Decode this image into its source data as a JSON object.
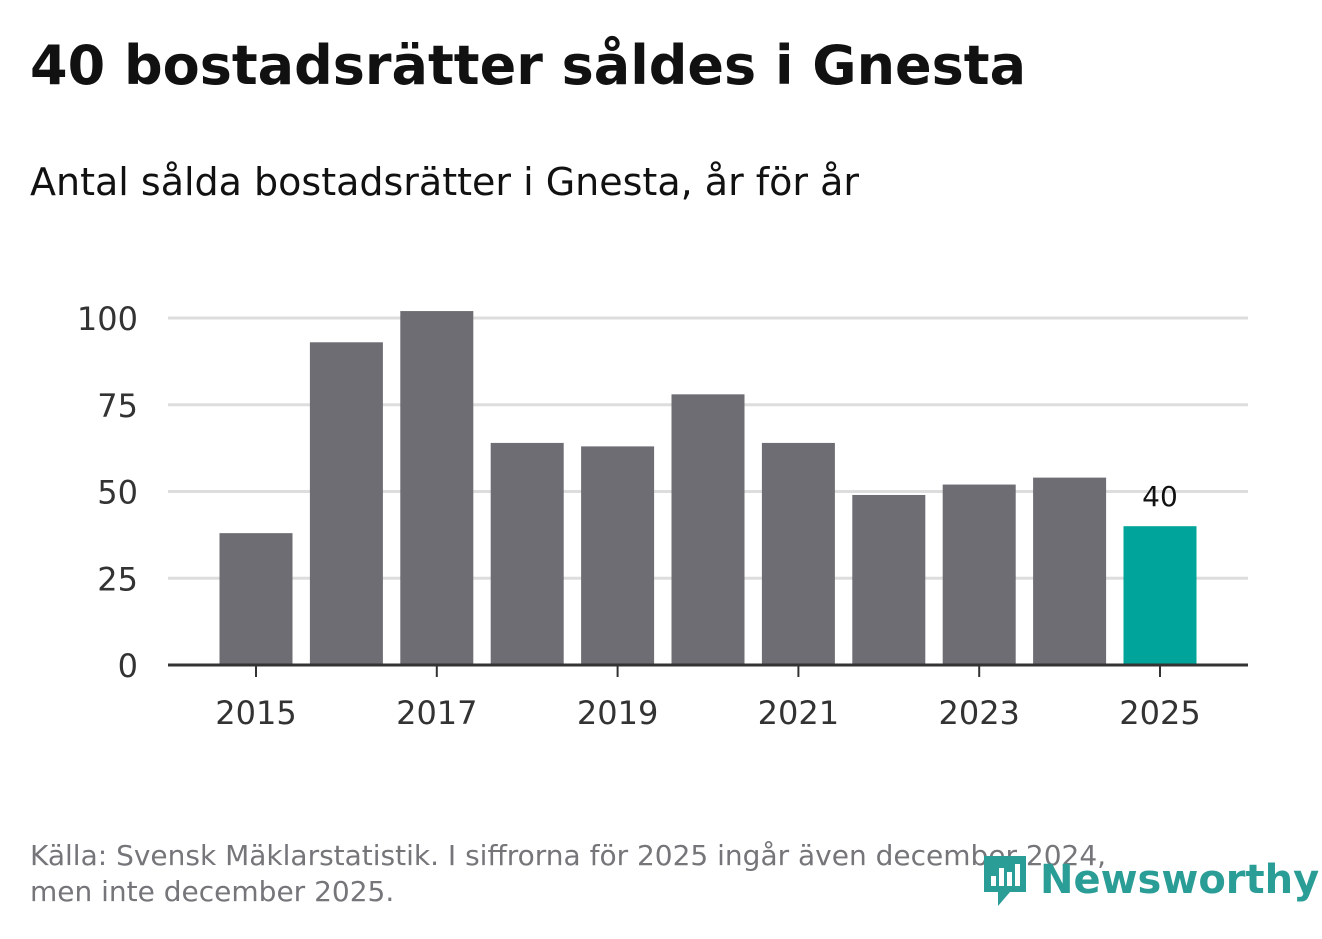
{
  "header": {
    "title": "40 bostadsrätter såldes i Gnesta",
    "subtitle": "Antal sålda bostadsrätter i Gnesta, år för år"
  },
  "chart_data": {
    "type": "bar",
    "categories": [
      "2015",
      "2016",
      "2017",
      "2018",
      "2019",
      "2020",
      "2021",
      "2022",
      "2023",
      "2024",
      "2025"
    ],
    "values": [
      38,
      93,
      102,
      64,
      63,
      78,
      64,
      49,
      52,
      54,
      40
    ],
    "ylim": [
      0,
      100
    ],
    "yticks": [
      0,
      25,
      50,
      75,
      100
    ],
    "xtick_labels": [
      "2015",
      "2017",
      "2019",
      "2021",
      "2023",
      "2025"
    ],
    "highlight_index": 10,
    "highlight_label": "40",
    "bar_color": "#6d6d73",
    "highlight_color": "#00a49a",
    "grid_color": "#dddddd",
    "axis_color": "#333333"
  },
  "footer": {
    "source_line1": "Källa: Svensk Mäklarstatistik. I siffrorna för 2025 ingår även december 2024,",
    "source_line2": "men inte december 2025."
  },
  "logo": {
    "text": "Newsworthy",
    "icon": "newsworthy-logo-icon",
    "color": "#2a9d96"
  }
}
